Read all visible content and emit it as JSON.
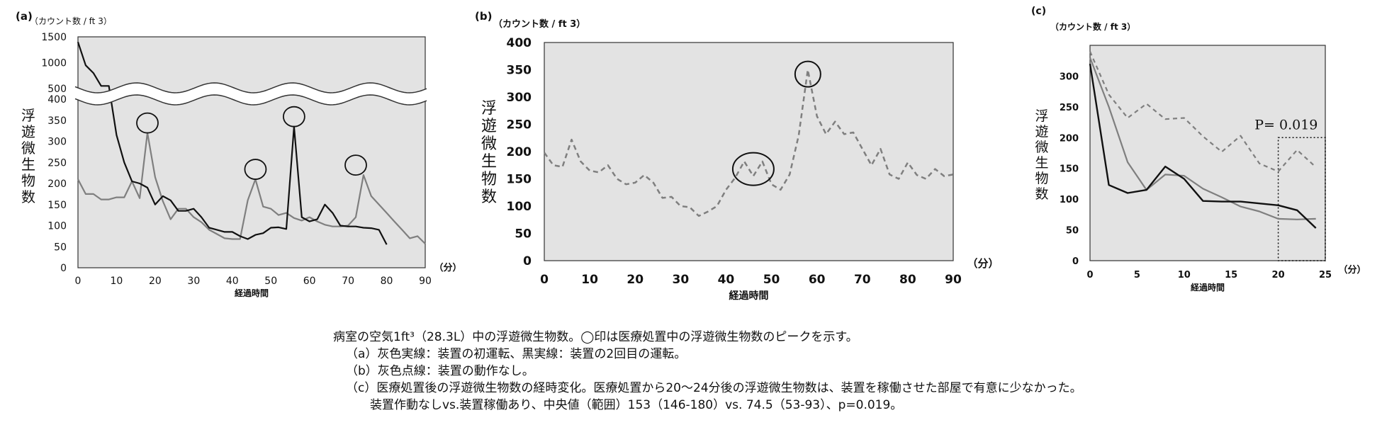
{
  "chart_data": [
    {
      "panel_label": "(a)",
      "type": "line",
      "unit_label": "（カウント数 / ft 3）",
      "ylabel": "浮遊微生物数",
      "xlabel": "経過時間",
      "x_unit": "（分）",
      "xlim": [
        0,
        90
      ],
      "ylim_lower": [
        0,
        400
      ],
      "ylim_upper": [
        500,
        1500
      ],
      "axis_break": true,
      "xticks": [
        0,
        10,
        20,
        30,
        40,
        50,
        60,
        70,
        80,
        90
      ],
      "yticks_lower": [
        0,
        50,
        100,
        150,
        200,
        250,
        300,
        350,
        400
      ],
      "yticks_upper": [
        500,
        1000,
        1500
      ],
      "grid": false,
      "series": [
        {
          "style": "gray-solid",
          "color": "#7f7f7f",
          "x": [
            0,
            2,
            4,
            6,
            8,
            10,
            12,
            14,
            16,
            18,
            20,
            22,
            24,
            26,
            28,
            30,
            32,
            34,
            36,
            38,
            40,
            42,
            44,
            46,
            48,
            50,
            52,
            54,
            56,
            58,
            60,
            62,
            64,
            66,
            68,
            70,
            72,
            74,
            76,
            78,
            80,
            82,
            84,
            86,
            88,
            90
          ],
          "y": [
            210,
            175,
            175,
            162,
            162,
            167,
            167,
            205,
            165,
            320,
            215,
            158,
            115,
            140,
            140,
            120,
            108,
            90,
            80,
            70,
            68,
            68,
            160,
            210,
            145,
            140,
            125,
            130,
            118,
            112,
            120,
            110,
            102,
            98,
            98,
            100,
            120,
            220,
            170,
            150,
            130,
            110,
            90,
            70,
            75,
            57
          ]
        },
        {
          "style": "black-solid",
          "color": "#111111",
          "x": [
            0,
            2,
            4,
            6,
            8,
            10,
            12,
            14,
            16,
            18,
            20,
            22,
            24,
            26,
            28,
            30,
            32,
            34,
            36,
            38,
            40,
            42,
            44,
            46,
            48,
            50,
            52,
            54,
            56,
            58,
            60,
            62,
            64,
            66,
            68,
            70,
            72,
            74,
            76,
            78,
            80
          ],
          "y": [
            1400,
            950,
            800,
            550,
            550,
            315,
            250,
            205,
            200,
            190,
            150,
            170,
            160,
            135,
            135,
            140,
            120,
            95,
            90,
            85,
            85,
            75,
            68,
            78,
            82,
            95,
            96,
            92,
            335,
            120,
            110,
            115,
            150,
            130,
            100,
            98,
            98,
            95,
            94,
            90,
            55
          ]
        }
      ],
      "peak_markers": [
        {
          "x": 18,
          "y": 320
        },
        {
          "x": 46,
          "y": 210
        },
        {
          "x": 56,
          "y": 335
        },
        {
          "x": 72,
          "y": 220
        }
      ]
    },
    {
      "panel_label": "(b)",
      "type": "line",
      "unit_label": "（カウント数 / ft 3）",
      "ylabel": "浮遊微生物数",
      "xlabel": "経過時間",
      "x_unit": "（分）",
      "xlim": [
        0,
        90
      ],
      "ylim": [
        0,
        400
      ],
      "xticks": [
        0,
        10,
        20,
        30,
        40,
        50,
        60,
        70,
        80,
        90
      ],
      "yticks": [
        0,
        50,
        100,
        150,
        200,
        250,
        300,
        350,
        400
      ],
      "grid": false,
      "series": [
        {
          "style": "gray-dashed",
          "color": "#7f7f7f",
          "x": [
            0,
            2,
            4,
            6,
            8,
            10,
            12,
            14,
            16,
            18,
            20,
            22,
            24,
            26,
            28,
            30,
            32,
            34,
            36,
            38,
            40,
            42,
            44,
            46,
            48,
            50,
            52,
            54,
            56,
            58,
            60,
            62,
            64,
            66,
            68,
            70,
            72,
            74,
            76,
            78,
            80,
            82,
            84,
            86,
            88,
            90
          ],
          "y": [
            198,
            175,
            172,
            222,
            182,
            165,
            162,
            175,
            150,
            140,
            143,
            157,
            143,
            115,
            117,
            100,
            98,
            82,
            90,
            100,
            130,
            152,
            182,
            155,
            182,
            140,
            130,
            158,
            230,
            350,
            265,
            232,
            255,
            232,
            235,
            205,
            175,
            205,
            158,
            150,
            180,
            157,
            150,
            168,
            155,
            158
          ]
        }
      ],
      "peak_markers": [
        {
          "x": 46,
          "y": 168
        },
        {
          "x": 58,
          "y": 342
        }
      ]
    },
    {
      "panel_label": "(c)",
      "type": "line",
      "unit_label": "（カウント数 / ft 3）",
      "ylabel": "浮遊微生物数",
      "xlabel": "経過時間",
      "x_unit": "（分）",
      "xlim": [
        0,
        25
      ],
      "ylim": [
        0,
        350
      ],
      "xticks": [
        0,
        5,
        10,
        15,
        20,
        25
      ],
      "yticks": [
        0,
        50,
        100,
        150,
        200,
        250,
        300
      ],
      "grid": false,
      "annotation": "P= 0.019",
      "highlight_range": [
        20,
        25
      ],
      "series": [
        {
          "style": "gray-dashed",
          "color": "#7f7f7f",
          "x": [
            0,
            2,
            4,
            6,
            8,
            10,
            12,
            14,
            16,
            18,
            20,
            22,
            24
          ],
          "y": [
            340,
            270,
            232,
            255,
            230,
            232,
            202,
            177,
            203,
            158,
            145,
            180,
            152
          ]
        },
        {
          "style": "gray-solid",
          "color": "#7f7f7f",
          "x": [
            0,
            2,
            4,
            6,
            8,
            10,
            12,
            14,
            16,
            18,
            20,
            22,
            24
          ],
          "y": [
            330,
            250,
            160,
            115,
            140,
            138,
            117,
            103,
            88,
            80,
            68,
            67,
            68
          ]
        },
        {
          "style": "black-solid",
          "color": "#111111",
          "x": [
            0,
            2,
            4,
            6,
            8,
            10,
            12,
            14,
            16,
            18,
            20,
            22,
            24
          ],
          "y": [
            320,
            123,
            110,
            115,
            153,
            133,
            97,
            96,
            96,
            93,
            90,
            82,
            53
          ]
        }
      ]
    }
  ],
  "caption": {
    "line1": "病室の空気1ft³（28.3L）中の浮遊微生物数。◯印は医療処置中の浮遊微生物数のピークを示す。",
    "line2": "（a）灰色実線：装置の初運転、黒実線：装置の2回目の運転。",
    "line3": "（b）灰色点線：装置の動作なし。",
    "line4": "（c）医療処置後の浮遊微生物数の経時変化。医療処置から20～24分後の浮遊微生物数は、装置を稼働させた部屋で有意に少なかった。",
    "line5": "装置作動なしvs.装置稼働あり、中央値（範囲）153（146-180）vs. 74.5（53-93）、p=0.019。"
  }
}
